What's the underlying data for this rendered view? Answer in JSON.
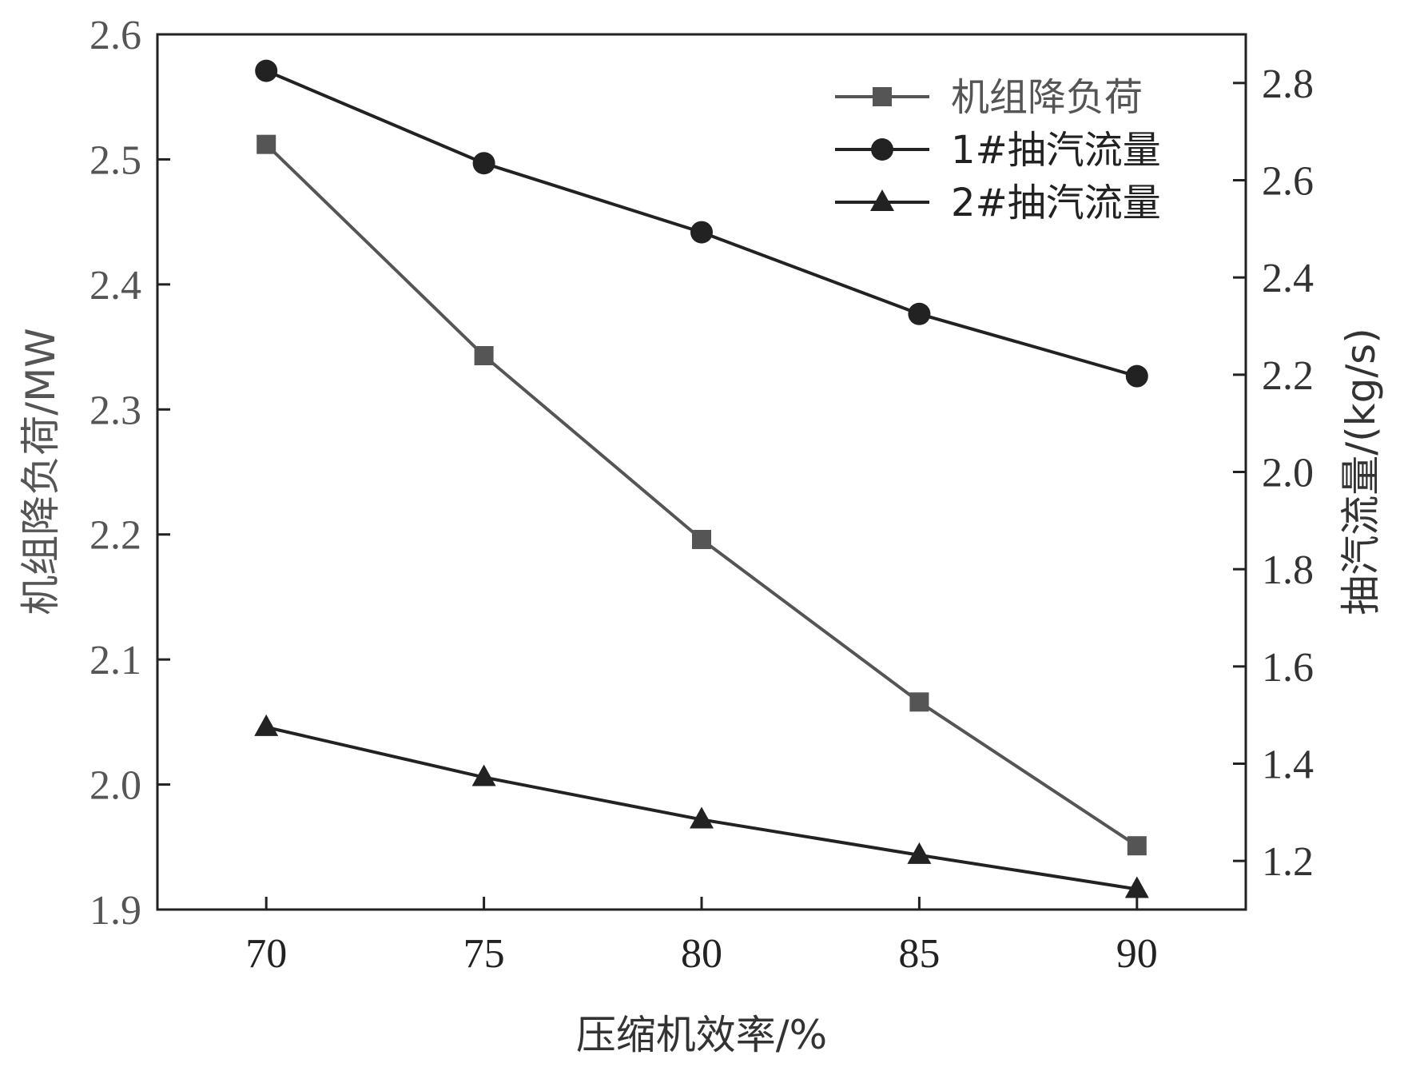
{
  "chart_data": {
    "type": "line",
    "x_axis": {
      "label": "压缩机效率/%",
      "ticks": [
        70,
        75,
        80,
        85,
        90
      ],
      "range": [
        67.5,
        92.5
      ]
    },
    "y_left": {
      "label": "机组降负荷/MW",
      "ticks": [
        "1.9",
        "2.0",
        "2.1",
        "2.2",
        "2.3",
        "2.4",
        "2.5",
        "2.6"
      ],
      "range": [
        1.9,
        2.6
      ]
    },
    "y_right": {
      "label": "抽汽流量/(kg/s)",
      "ticks": [
        "1.2",
        "1.4",
        "1.6",
        "1.8",
        "2.0",
        "2.2",
        "2.4",
        "2.6",
        "2.8"
      ],
      "range": [
        1.1,
        2.9
      ]
    },
    "x": [
      70,
      75,
      80,
      85,
      90
    ],
    "series": [
      {
        "name": "机组降负荷",
        "axis": "left",
        "marker": "square",
        "color": "#555555",
        "values": [
          2.512,
          2.343,
          2.196,
          2.066,
          1.951
        ]
      },
      {
        "name": "1#抽汽流量",
        "axis": "right",
        "marker": "circle",
        "color": "#222222",
        "values": [
          2.825,
          2.635,
          2.493,
          2.325,
          2.197
        ]
      },
      {
        "name": "2#抽汽流量",
        "axis": "right",
        "marker": "triangle",
        "color": "#222222",
        "values": [
          1.475,
          1.372,
          1.285,
          1.212,
          1.142
        ]
      }
    ],
    "legend_position": "top-right",
    "grid": false
  }
}
